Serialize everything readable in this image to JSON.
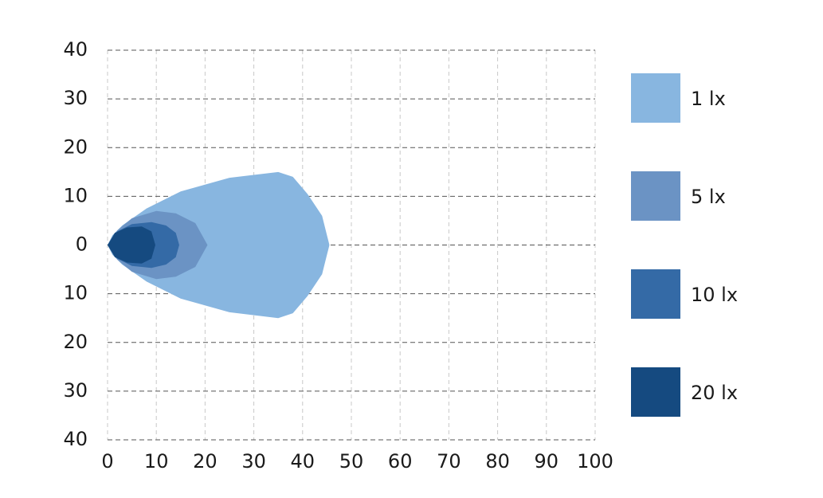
{
  "chart_data": {
    "type": "area",
    "series": [
      {
        "name": "1 lx",
        "color": "#88b6e0",
        "x": [
          0,
          1,
          3,
          8,
          15,
          25,
          35,
          38,
          41,
          44,
          45.5,
          44,
          41,
          38,
          35,
          25,
          15,
          8,
          3,
          1
        ],
        "y": [
          0,
          2,
          4,
          7.5,
          11,
          13.8,
          15,
          14,
          10.5,
          6,
          0,
          -6,
          -10.5,
          -14,
          -15,
          -13.8,
          -11,
          -7.5,
          -4,
          -2
        ]
      },
      {
        "name": "5 lx",
        "color": "#6b93c4",
        "x": [
          0,
          2,
          5,
          10,
          14,
          18,
          20.5,
          18,
          14,
          10,
          5,
          2
        ],
        "y": [
          0,
          3,
          5.5,
          7,
          6.5,
          4.5,
          0,
          -4.5,
          -6.5,
          -7,
          -5.5,
          -3
        ]
      },
      {
        "name": "10 lx",
        "color": "#346aa6",
        "x": [
          0,
          2,
          5,
          9,
          12,
          14,
          14.7,
          14,
          12,
          9,
          5,
          2
        ],
        "y": [
          0,
          2.8,
          4.3,
          4.7,
          4,
          2.5,
          0,
          -2.5,
          -4,
          -4.7,
          -4.3,
          -2.8
        ]
      },
      {
        "name": "20 lx",
        "color": "#154a80",
        "x": [
          0,
          1.5,
          4,
          7,
          9,
          9.8,
          9,
          7,
          4,
          1.5
        ],
        "y": [
          0,
          2.5,
          3.6,
          3.8,
          2.8,
          0,
          -2.8,
          -3.8,
          -3.6,
          -2.5
        ]
      }
    ],
    "xlim": [
      0,
      100
    ],
    "xticks": [
      0,
      10,
      20,
      30,
      40,
      50,
      60,
      70,
      80,
      90,
      100
    ],
    "ylim": [
      -40,
      40
    ],
    "yticks": [
      {
        "value": -40,
        "label": "40"
      },
      {
        "value": -30,
        "label": "30"
      },
      {
        "value": -20,
        "label": "20"
      },
      {
        "value": -10,
        "label": "10"
      },
      0,
      10,
      20,
      30,
      40
    ],
    "grid": true,
    "legend": "right"
  }
}
